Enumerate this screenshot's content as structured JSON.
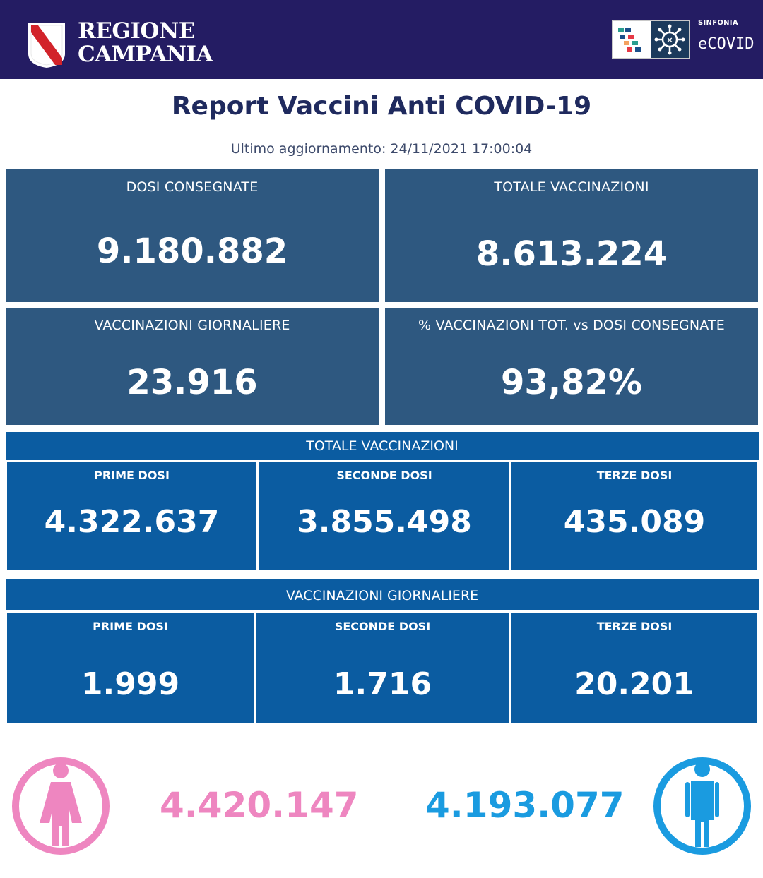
{
  "header": {
    "region_line1": "REGIONE",
    "region_line2": "CAMPANIA",
    "brand_small": "SINFONIA",
    "brand_large": "eCOVID"
  },
  "title": "Report Vaccini Anti COVID-19",
  "updated": "Ultimo aggiornamento: 24/11/2021  17:00:04",
  "kpis": {
    "dosi_consegnate": {
      "label": "DOSI  CONSEGNATE",
      "value": "9.180.882"
    },
    "totale_vaccinazioni": {
      "label": "TOTALE VACCINAZIONI",
      "value": "8.613.224"
    },
    "vaccinazioni_giornaliere": {
      "label": "VACCINAZIONI GIORNALIERE",
      "value": "23.916"
    },
    "percentuale": {
      "label": "% VACCINAZIONI TOT. vs DOSI CONSEGNATE",
      "value": "93,82%"
    }
  },
  "totale_section": {
    "title": "TOTALE VACCINAZIONI",
    "cells": [
      {
        "label": "PRIME DOSI",
        "value": "4.322.637"
      },
      {
        "label": "SECONDE DOSI",
        "value": "3.855.498"
      },
      {
        "label": "TERZE DOSI",
        "value": "435.089"
      }
    ]
  },
  "giornaliere_section": {
    "title": "VACCINAZIONI GIORNALIERE",
    "cells": [
      {
        "label": "PRIME DOSI",
        "value": "1.999"
      },
      {
        "label": "SECONDE DOSI",
        "value": "1.716"
      },
      {
        "label": "TERZE DOSI",
        "value": "20.201"
      }
    ]
  },
  "gender": {
    "female": {
      "value": "4.420.147",
      "icon": "female-icon",
      "color": "#ee86c0"
    },
    "male": {
      "value": "4.193.077",
      "icon": "male-icon",
      "color": "#1a9be0"
    }
  },
  "colors": {
    "header_bg": "#241c63",
    "kpi_bg": "#2e5880",
    "band_bg": "#0b5ca1",
    "title_color": "#1f2a5e"
  }
}
